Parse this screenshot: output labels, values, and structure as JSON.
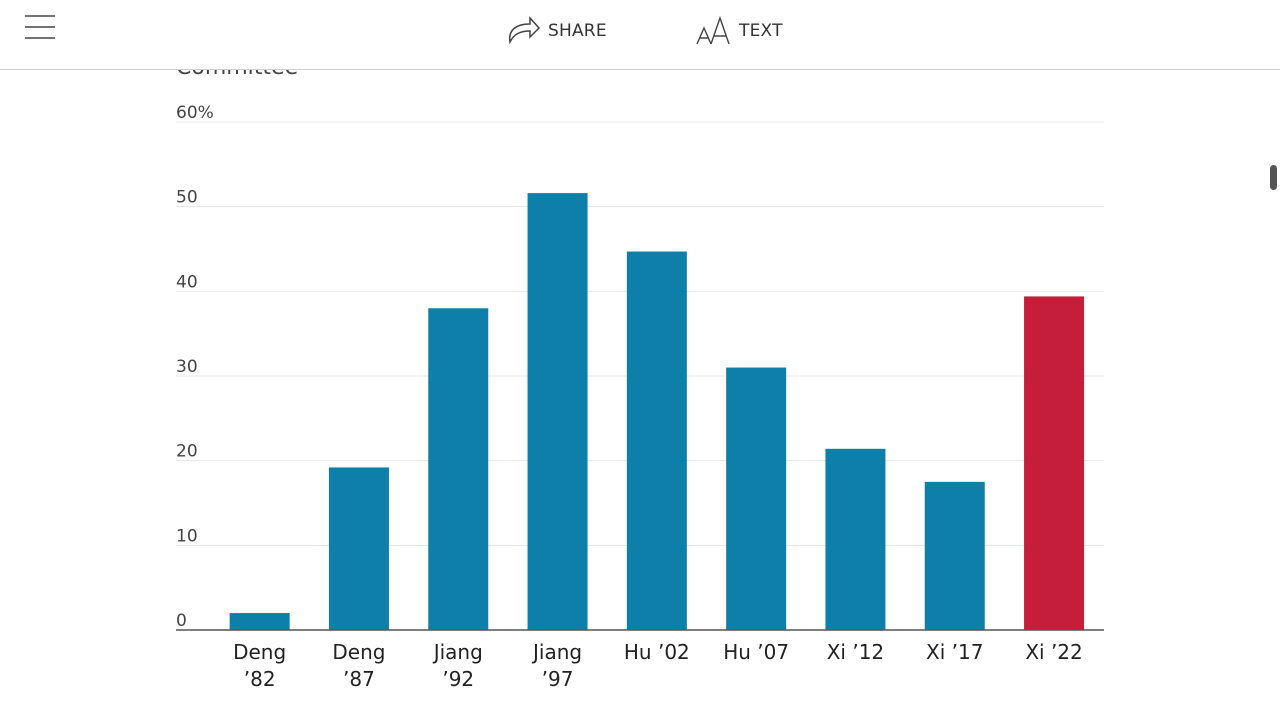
{
  "toolbar": {
    "share": "SHARE",
    "text": "TEXT"
  },
  "chart_data": {
    "type": "bar",
    "subtitle": "Committee",
    "categories": [
      "Deng ’82",
      "Deng ’87",
      "Jiang ’92",
      "Jiang ’97",
      "Hu ’02",
      "Hu ’07",
      "Xi ’12",
      "Xi ’17",
      "Xi ’22"
    ],
    "values": [
      2,
      19.2,
      38,
      51.6,
      44.7,
      31,
      21.4,
      17.5,
      39.4
    ],
    "colors": [
      "#0e7fa8",
      "#0e7fa8",
      "#0e7fa8",
      "#0e7fa8",
      "#0e7fa8",
      "#0e7fa8",
      "#0e7fa8",
      "#0e7fa8",
      "#c41e3a"
    ],
    "ylim": [
      0,
      60
    ],
    "yticks": [
      0,
      10,
      20,
      30,
      40,
      50,
      {
        "value": 60,
        "label": "60%"
      }
    ],
    "grid": true
  }
}
